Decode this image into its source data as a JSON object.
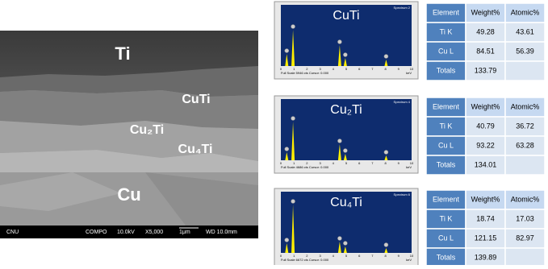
{
  "sem": {
    "labels": [
      "Ti",
      "CuTi",
      "Cu₂Ti",
      "Cu₄Ti",
      "Cu"
    ],
    "info_bar": [
      "CNU",
      "COMPO",
      "10.0kV",
      "X5,000",
      "1μm",
      "WD 10.0mm"
    ]
  },
  "panels": [
    {
      "spectrum": {
        "title": "CuTi",
        "name": "Spectrum 2",
        "footer": "Full Scale 5946 cts Cursor: 0.000",
        "xticks": [
          "0",
          "1",
          "2",
          "3",
          "4",
          "5",
          "6",
          "7",
          "8",
          "9",
          "10"
        ],
        "unit": "keV"
      },
      "table": {
        "header": [
          "Element",
          "Weight%",
          "Atomic%"
        ],
        "rows": [
          [
            "Ti K",
            49.28,
            43.61
          ],
          [
            "Cu L",
            84.51,
            56.39
          ],
          [
            "Totals",
            133.79
          ]
        ]
      }
    },
    {
      "spectrum": {
        "title": "Cu₂Ti",
        "name": "Spectrum 4",
        "footer": "Full Scale 4686 cts Cursor: 0.000",
        "xticks": [
          "0",
          "1",
          "2",
          "3",
          "4",
          "5",
          "6",
          "7",
          "8",
          "9",
          "10"
        ],
        "unit": "keV"
      },
      "table": {
        "header": [
          "Element",
          "Weight%",
          "Atomic%"
        ],
        "rows": [
          [
            "Ti K",
            40.79,
            36.72
          ],
          [
            "Cu L",
            93.22,
            63.28
          ],
          [
            "Totals",
            134.01
          ]
        ]
      }
    },
    {
      "spectrum": {
        "title": "Cu₄Ti",
        "name": "Spectrum 6",
        "footer": "Full Scale 6672 cts Cursor: 0.000",
        "xticks": [
          "0",
          "1",
          "2",
          "3",
          "4",
          "5",
          "6",
          "7",
          "8",
          "9",
          "10"
        ],
        "unit": "keV"
      },
      "table": {
        "header": [
          "Element",
          "Weight%",
          "Atomic%"
        ],
        "rows": [
          [
            "Ti K",
            18.74,
            17.03
          ],
          [
            "Cu L",
            121.15,
            82.97
          ],
          [
            "Totals",
            139.89
          ]
        ]
      }
    }
  ]
}
